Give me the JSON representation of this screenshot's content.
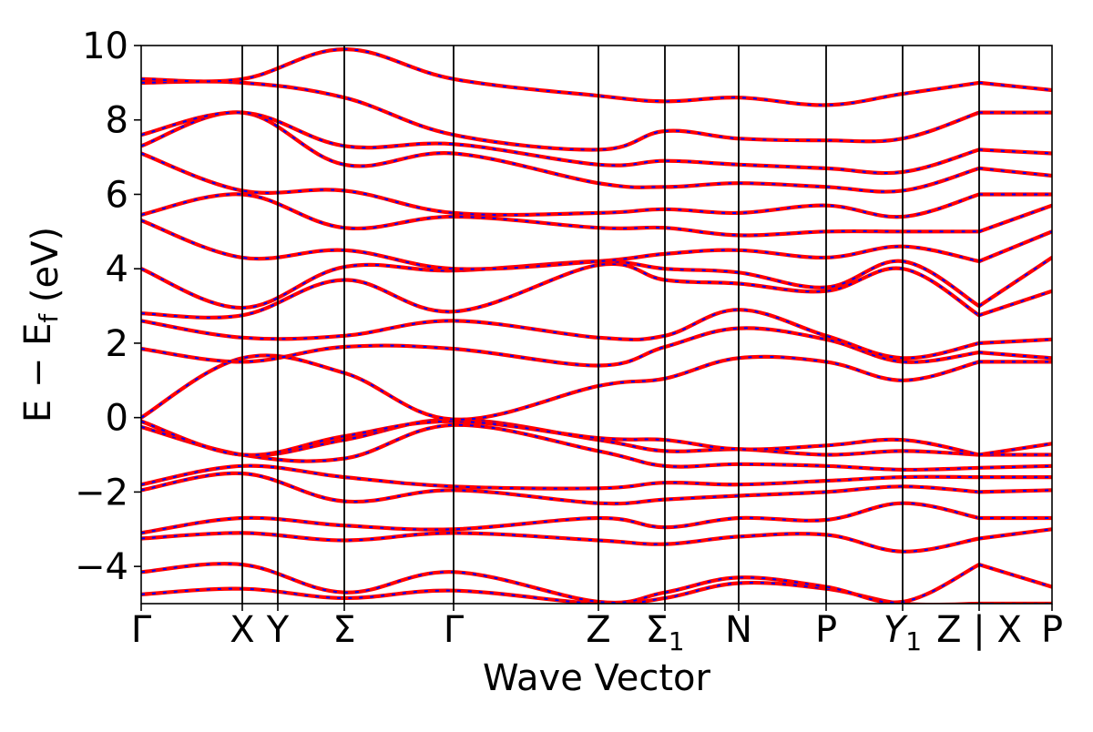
{
  "chart_data": {
    "type": "line",
    "title": "",
    "xlabel": "Wave Vector",
    "ylabel": "E − E_f (eV)",
    "ylim": [
      -5,
      10
    ],
    "yticks": [
      -4,
      -2,
      0,
      2,
      4,
      6,
      8,
      10
    ],
    "grid": false,
    "legend": "none",
    "colors": {
      "band_solid": "#ff0000",
      "band_dashed": "#0000ff",
      "axes": "#000000"
    },
    "kpoints": [
      {
        "label": "Γ",
        "x": 0.0
      },
      {
        "label": "X",
        "x": 0.111
      },
      {
        "label": "Y",
        "x": 0.15
      },
      {
        "label": "Σ",
        "x": 0.223
      },
      {
        "label": "Γ",
        "x": 0.343
      },
      {
        "label": "Z",
        "x": 0.502
      },
      {
        "label": "Σ1",
        "x": 0.575
      },
      {
        "label": "N",
        "x": 0.656
      },
      {
        "label": "P",
        "x": 0.752
      },
      {
        "label": "Y1",
        "x": 0.836
      },
      {
        "label": "Z | X",
        "x": 0.92
      },
      {
        "label": "P",
        "x": 1.0
      }
    ],
    "path_breaks": [
      0.92
    ],
    "series": [
      {
        "values": [
          [
            0,
            -4.75
          ],
          [
            0.111,
            -4.6
          ],
          [
            0.223,
            -4.85
          ],
          [
            0.343,
            -4.65
          ],
          [
            0.502,
            -5.0
          ],
          [
            0.575,
            -4.85
          ],
          [
            0.656,
            -4.45
          ],
          [
            0.752,
            -4.6
          ],
          [
            0.836,
            -5.0
          ],
          [
            0.92,
            -5.0
          ],
          [
            1.0,
            -5.0
          ]
        ]
      },
      {
        "values": [
          [
            0,
            -4.15
          ],
          [
            0.111,
            -3.95
          ],
          [
            0.223,
            -4.7
          ],
          [
            0.343,
            -4.15
          ],
          [
            0.502,
            -4.95
          ],
          [
            0.575,
            -4.7
          ],
          [
            0.656,
            -4.3
          ],
          [
            0.752,
            -4.55
          ],
          [
            0.836,
            -4.95
          ],
          [
            0.92,
            -3.95
          ],
          [
            1.0,
            -4.55
          ]
        ]
      },
      {
        "values": [
          [
            0,
            -3.25
          ],
          [
            0.111,
            -3.1
          ],
          [
            0.223,
            -3.3
          ],
          [
            0.343,
            -3.1
          ],
          [
            0.502,
            -3.3
          ],
          [
            0.575,
            -3.4
          ],
          [
            0.656,
            -3.2
          ],
          [
            0.752,
            -3.15
          ],
          [
            0.836,
            -3.6
          ],
          [
            0.92,
            -3.25
          ],
          [
            1.0,
            -3.0
          ]
        ]
      },
      {
        "values": [
          [
            0,
            -3.1
          ],
          [
            0.111,
            -2.7
          ],
          [
            0.223,
            -2.9
          ],
          [
            0.343,
            -3.0
          ],
          [
            0.502,
            -2.7
          ],
          [
            0.575,
            -2.95
          ],
          [
            0.656,
            -2.7
          ],
          [
            0.752,
            -2.75
          ],
          [
            0.836,
            -2.3
          ],
          [
            0.92,
            -2.7
          ],
          [
            1.0,
            -2.7
          ]
        ]
      },
      {
        "values": [
          [
            0,
            -1.95
          ],
          [
            0.111,
            -1.5
          ],
          [
            0.223,
            -2.25
          ],
          [
            0.343,
            -1.95
          ],
          [
            0.502,
            -2.3
          ],
          [
            0.575,
            -2.2
          ],
          [
            0.656,
            -2.1
          ],
          [
            0.752,
            -2.0
          ],
          [
            0.836,
            -1.85
          ],
          [
            0.92,
            -2.0
          ],
          [
            1.0,
            -1.95
          ]
        ]
      },
      {
        "values": [
          [
            0,
            -1.8
          ],
          [
            0.111,
            -1.3
          ],
          [
            0.223,
            -1.6
          ],
          [
            0.343,
            -1.85
          ],
          [
            0.502,
            -1.9
          ],
          [
            0.575,
            -1.75
          ],
          [
            0.656,
            -1.8
          ],
          [
            0.752,
            -1.7
          ],
          [
            0.836,
            -1.6
          ],
          [
            0.92,
            -1.6
          ],
          [
            1.0,
            -1.6
          ]
        ]
      },
      {
        "values": [
          [
            0,
            -0.25
          ],
          [
            0.111,
            -1.0
          ],
          [
            0.223,
            -1.1
          ],
          [
            0.343,
            -0.2
          ],
          [
            0.502,
            -0.9
          ],
          [
            0.575,
            -1.3
          ],
          [
            0.656,
            -1.25
          ],
          [
            0.752,
            -1.3
          ],
          [
            0.836,
            -1.4
          ],
          [
            0.92,
            -1.35
          ],
          [
            1.0,
            -1.3
          ]
        ]
      },
      {
        "values": [
          [
            0,
            -0.1
          ],
          [
            0.111,
            -1.0
          ],
          [
            0.223,
            -0.6
          ],
          [
            0.343,
            -0.05
          ],
          [
            0.502,
            -0.6
          ],
          [
            0.575,
            -0.9
          ],
          [
            0.656,
            -0.85
          ],
          [
            0.752,
            -1.0
          ],
          [
            0.836,
            -0.9
          ],
          [
            0.92,
            -1.0
          ],
          [
            1.0,
            -1.0
          ]
        ]
      },
      {
        "values": [
          [
            0,
            -0.1
          ],
          [
            0.111,
            -1.0
          ],
          [
            0.223,
            -0.5
          ],
          [
            0.343,
            -0.1
          ],
          [
            0.502,
            -0.55
          ],
          [
            0.575,
            -0.6
          ],
          [
            0.656,
            -0.85
          ],
          [
            0.752,
            -0.75
          ],
          [
            0.836,
            -0.6
          ],
          [
            0.92,
            -1.0
          ],
          [
            1.0,
            -0.7
          ]
        ]
      },
      {
        "values": [
          [
            0,
            0.0
          ],
          [
            0.111,
            1.6
          ],
          [
            0.223,
            1.2
          ],
          [
            0.343,
            -0.05
          ],
          [
            0.502,
            0.85
          ],
          [
            0.575,
            1.05
          ],
          [
            0.656,
            1.6
          ],
          [
            0.752,
            1.5
          ],
          [
            0.836,
            1.0
          ],
          [
            0.92,
            1.5
          ],
          [
            1.0,
            1.5
          ]
        ]
      },
      {
        "values": [
          [
            0,
            1.85
          ],
          [
            0.111,
            1.5
          ],
          [
            0.223,
            1.9
          ],
          [
            0.343,
            1.85
          ],
          [
            0.502,
            1.4
          ],
          [
            0.575,
            1.9
          ],
          [
            0.656,
            2.4
          ],
          [
            0.752,
            2.1
          ],
          [
            0.836,
            1.5
          ],
          [
            0.92,
            1.75
          ],
          [
            1.0,
            1.6
          ]
        ]
      },
      {
        "values": [
          [
            0,
            2.6
          ],
          [
            0.111,
            2.15
          ],
          [
            0.223,
            2.2
          ],
          [
            0.343,
            2.6
          ],
          [
            0.502,
            2.15
          ],
          [
            0.575,
            2.2
          ],
          [
            0.656,
            2.9
          ],
          [
            0.752,
            2.2
          ],
          [
            0.836,
            1.6
          ],
          [
            0.92,
            2.0
          ],
          [
            1.0,
            2.1
          ]
        ]
      },
      {
        "values": [
          [
            0,
            2.8
          ],
          [
            0.111,
            2.75
          ],
          [
            0.223,
            3.7
          ],
          [
            0.343,
            2.85
          ],
          [
            0.502,
            4.1
          ],
          [
            0.575,
            3.7
          ],
          [
            0.656,
            3.6
          ],
          [
            0.752,
            3.4
          ],
          [
            0.836,
            4.0
          ],
          [
            0.92,
            2.75
          ],
          [
            1.0,
            3.4
          ]
        ]
      },
      {
        "values": [
          [
            0,
            4.0
          ],
          [
            0.111,
            2.95
          ],
          [
            0.223,
            4.05
          ],
          [
            0.343,
            3.95
          ],
          [
            0.502,
            4.2
          ],
          [
            0.575,
            4.0
          ],
          [
            0.656,
            3.9
          ],
          [
            0.752,
            3.5
          ],
          [
            0.836,
            4.2
          ],
          [
            0.92,
            3.0
          ],
          [
            1.0,
            4.3
          ]
        ]
      },
      {
        "values": [
          [
            0,
            5.3
          ],
          [
            0.111,
            4.3
          ],
          [
            0.223,
            4.5
          ],
          [
            0.343,
            4.0
          ],
          [
            0.502,
            4.2
          ],
          [
            0.575,
            4.4
          ],
          [
            0.656,
            4.5
          ],
          [
            0.752,
            4.3
          ],
          [
            0.836,
            4.6
          ],
          [
            0.92,
            4.2
          ],
          [
            1.0,
            5.0
          ]
        ]
      },
      {
        "values": [
          [
            0,
            5.45
          ],
          [
            0.111,
            6.0
          ],
          [
            0.223,
            5.1
          ],
          [
            0.343,
            5.4
          ],
          [
            0.502,
            5.1
          ],
          [
            0.575,
            5.1
          ],
          [
            0.656,
            4.9
          ],
          [
            0.752,
            5.0
          ],
          [
            0.836,
            5.0
          ],
          [
            0.92,
            5.0
          ],
          [
            1.0,
            5.7
          ]
        ]
      },
      {
        "values": [
          [
            0,
            7.1
          ],
          [
            0.111,
            6.1
          ],
          [
            0.223,
            6.1
          ],
          [
            0.343,
            5.5
          ],
          [
            0.502,
            5.5
          ],
          [
            0.575,
            5.6
          ],
          [
            0.656,
            5.5
          ],
          [
            0.752,
            5.7
          ],
          [
            0.836,
            5.4
          ],
          [
            0.92,
            6.0
          ],
          [
            1.0,
            6.0
          ]
        ]
      },
      {
        "values": [
          [
            0,
            7.3
          ],
          [
            0.111,
            8.2
          ],
          [
            0.223,
            6.8
          ],
          [
            0.343,
            7.1
          ],
          [
            0.502,
            6.3
          ],
          [
            0.575,
            6.2
          ],
          [
            0.656,
            6.3
          ],
          [
            0.752,
            6.2
          ],
          [
            0.836,
            6.1
          ],
          [
            0.92,
            6.7
          ],
          [
            1.0,
            6.5
          ]
        ]
      },
      {
        "values": [
          [
            0,
            7.6
          ],
          [
            0.111,
            8.2
          ],
          [
            0.223,
            7.3
          ],
          [
            0.343,
            7.35
          ],
          [
            0.502,
            6.8
          ],
          [
            0.575,
            6.9
          ],
          [
            0.656,
            6.8
          ],
          [
            0.752,
            6.7
          ],
          [
            0.836,
            6.6
          ],
          [
            0.92,
            7.2
          ],
          [
            1.0,
            7.1
          ]
        ]
      },
      {
        "values": [
          [
            0,
            9.0
          ],
          [
            0.111,
            9.0
          ],
          [
            0.223,
            8.6
          ],
          [
            0.343,
            7.6
          ],
          [
            0.502,
            7.2
          ],
          [
            0.575,
            7.7
          ],
          [
            0.656,
            7.5
          ],
          [
            0.752,
            7.45
          ],
          [
            0.836,
            7.5
          ],
          [
            0.92,
            8.2
          ],
          [
            1.0,
            8.2
          ]
        ]
      },
      {
        "values": [
          [
            0,
            9.1
          ],
          [
            0.111,
            9.1
          ],
          [
            0.223,
            9.9
          ],
          [
            0.343,
            9.1
          ],
          [
            0.502,
            8.65
          ],
          [
            0.575,
            8.5
          ],
          [
            0.656,
            8.6
          ],
          [
            0.752,
            8.4
          ],
          [
            0.836,
            8.7
          ],
          [
            0.92,
            9.0
          ],
          [
            1.0,
            8.8
          ]
        ]
      }
    ]
  }
}
